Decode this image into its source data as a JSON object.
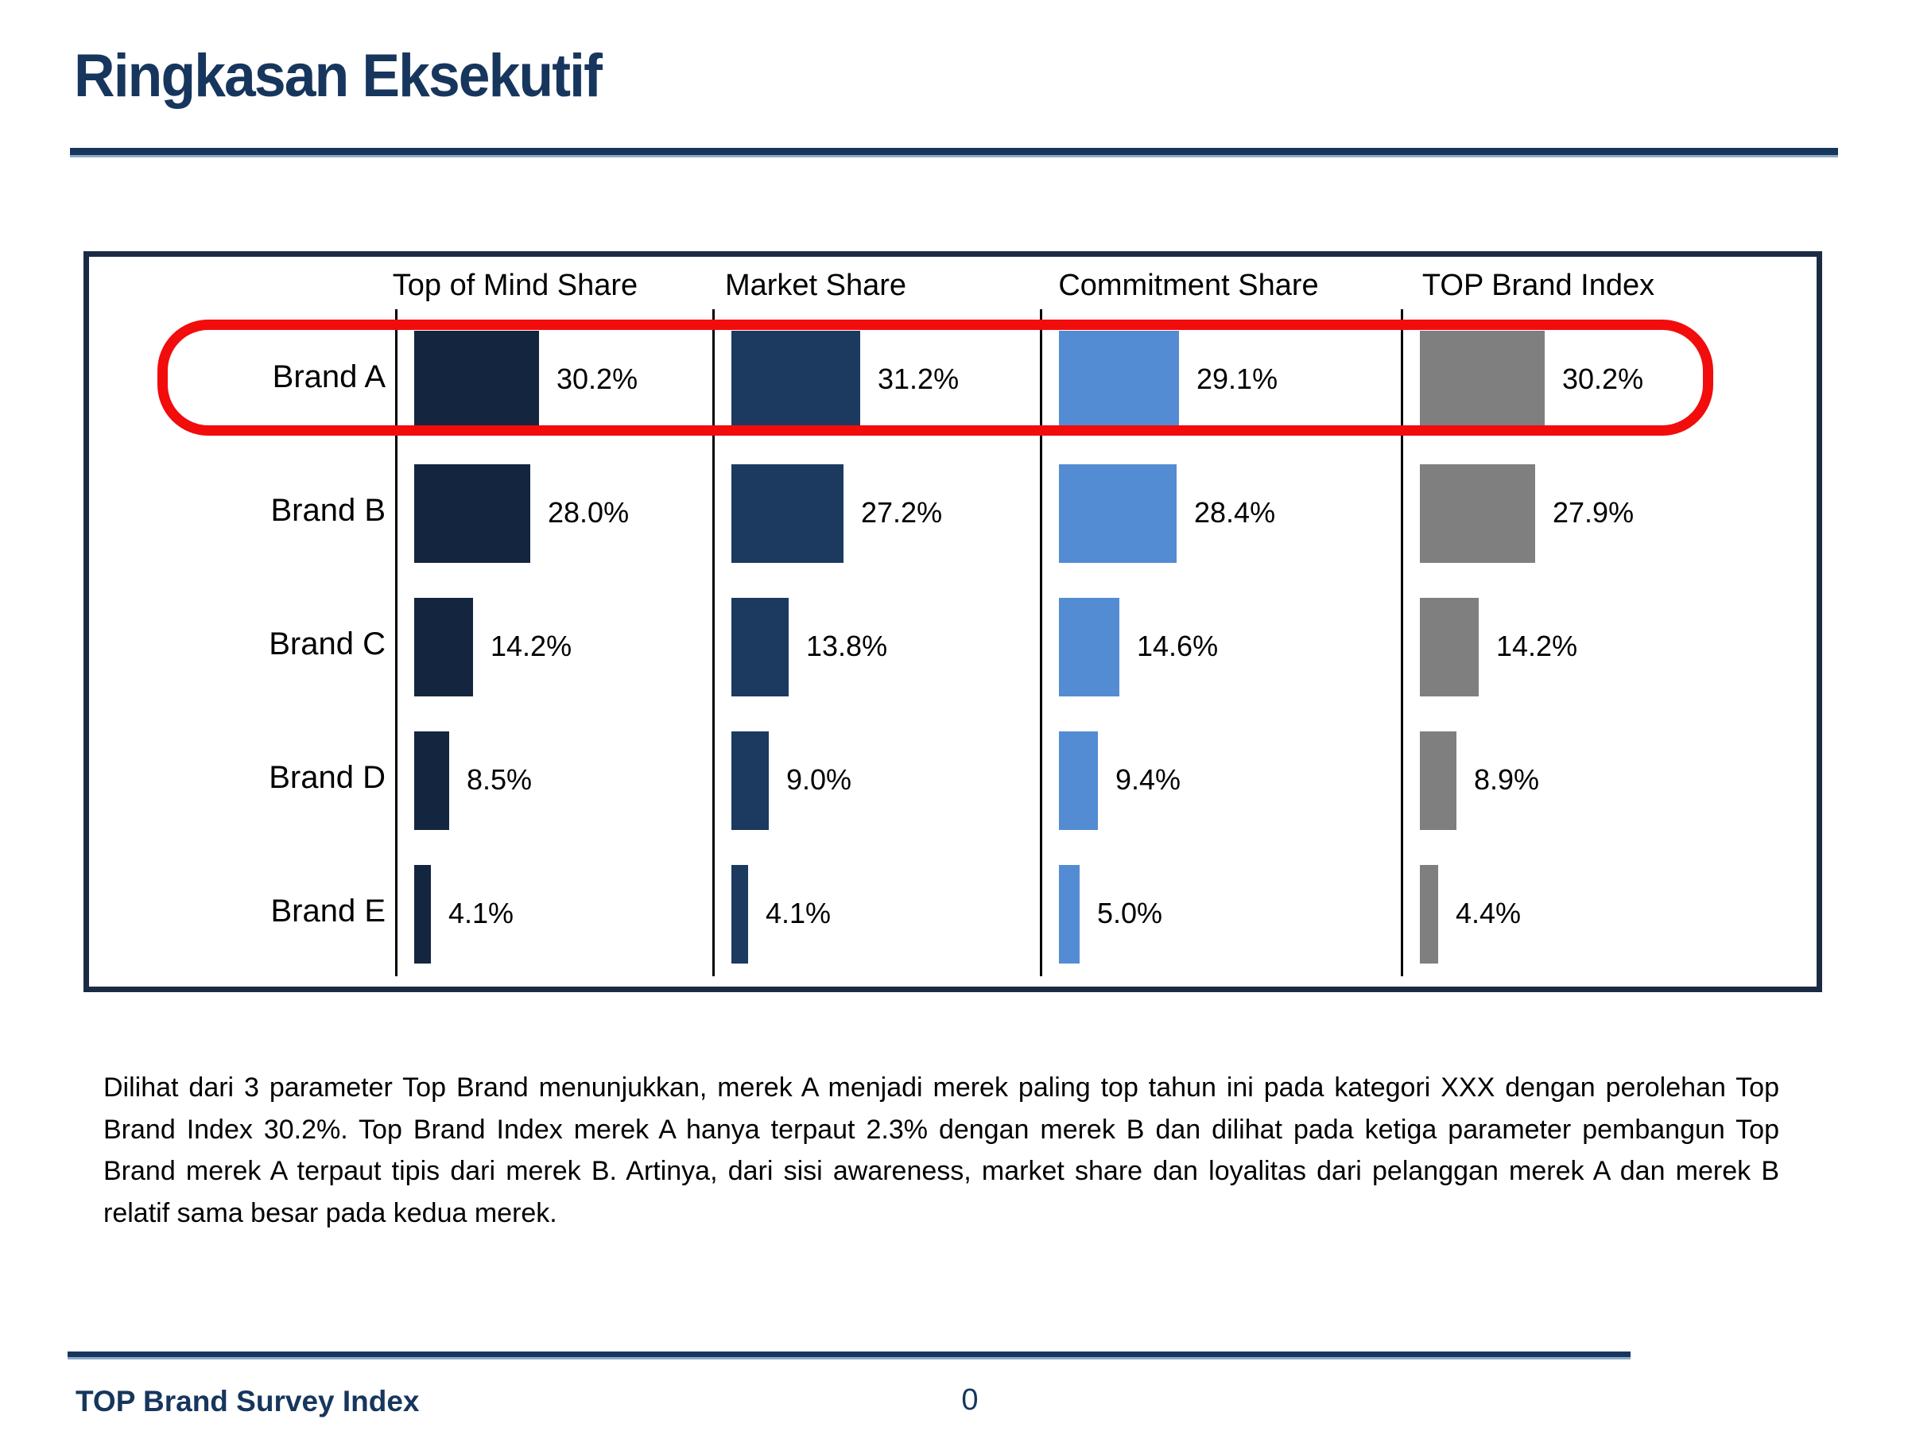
{
  "slide": {
    "title": "Ringkasan Eksekutif",
    "footer": "TOP Brand Survey Index",
    "page_number": "0",
    "summary_paragraph": "Dilihat dari 3 parameter Top Brand menunjukkan, merek A menjadi merek paling top tahun ini pada kategori XXX dengan perolehan Top Brand Index 30.2%. Top Brand Index merek A hanya terpaut 2.3% dengan merek B dan dilihat pada ketiga parameter pembangun Top Brand merek A terpaut tipis dari merek B. Artinya, dari sisi awareness, market share dan loyalitas dari pelanggan merek A dan merek B relatif sama besar pada kedua merek."
  },
  "colors": {
    "accent_navy": "#17365D",
    "chart_border": "#1B2B44",
    "highlight_red": "#F20C0C"
  },
  "chart_data": {
    "type": "bar",
    "orientation": "horizontal",
    "title": "",
    "categories": [
      "Brand A",
      "Brand B",
      "Brand C",
      "Brand D",
      "Brand E"
    ],
    "series": [
      {
        "name": "Top of Mind Share",
        "color": "#14263F",
        "values": [
          30.2,
          28.0,
          14.2,
          8.5,
          4.1
        ]
      },
      {
        "name": "Market Share",
        "color": "#1C3A60",
        "values": [
          31.2,
          27.2,
          13.8,
          9.0,
          4.1
        ]
      },
      {
        "name": "Commitment Share",
        "color": "#548CD3",
        "values": [
          29.1,
          28.4,
          14.6,
          9.4,
          5.0
        ]
      },
      {
        "name": "TOP Brand Index",
        "color": "#7F7F7F",
        "values": [
          30.2,
          27.9,
          14.2,
          8.9,
          4.4
        ]
      }
    ],
    "value_labels": "percent_one_decimal",
    "xlim": [
      0,
      35
    ],
    "grid": false,
    "legend_position": "column-headers",
    "highlight": {
      "category": "Brand A",
      "style": "red-rounded-outline"
    }
  }
}
